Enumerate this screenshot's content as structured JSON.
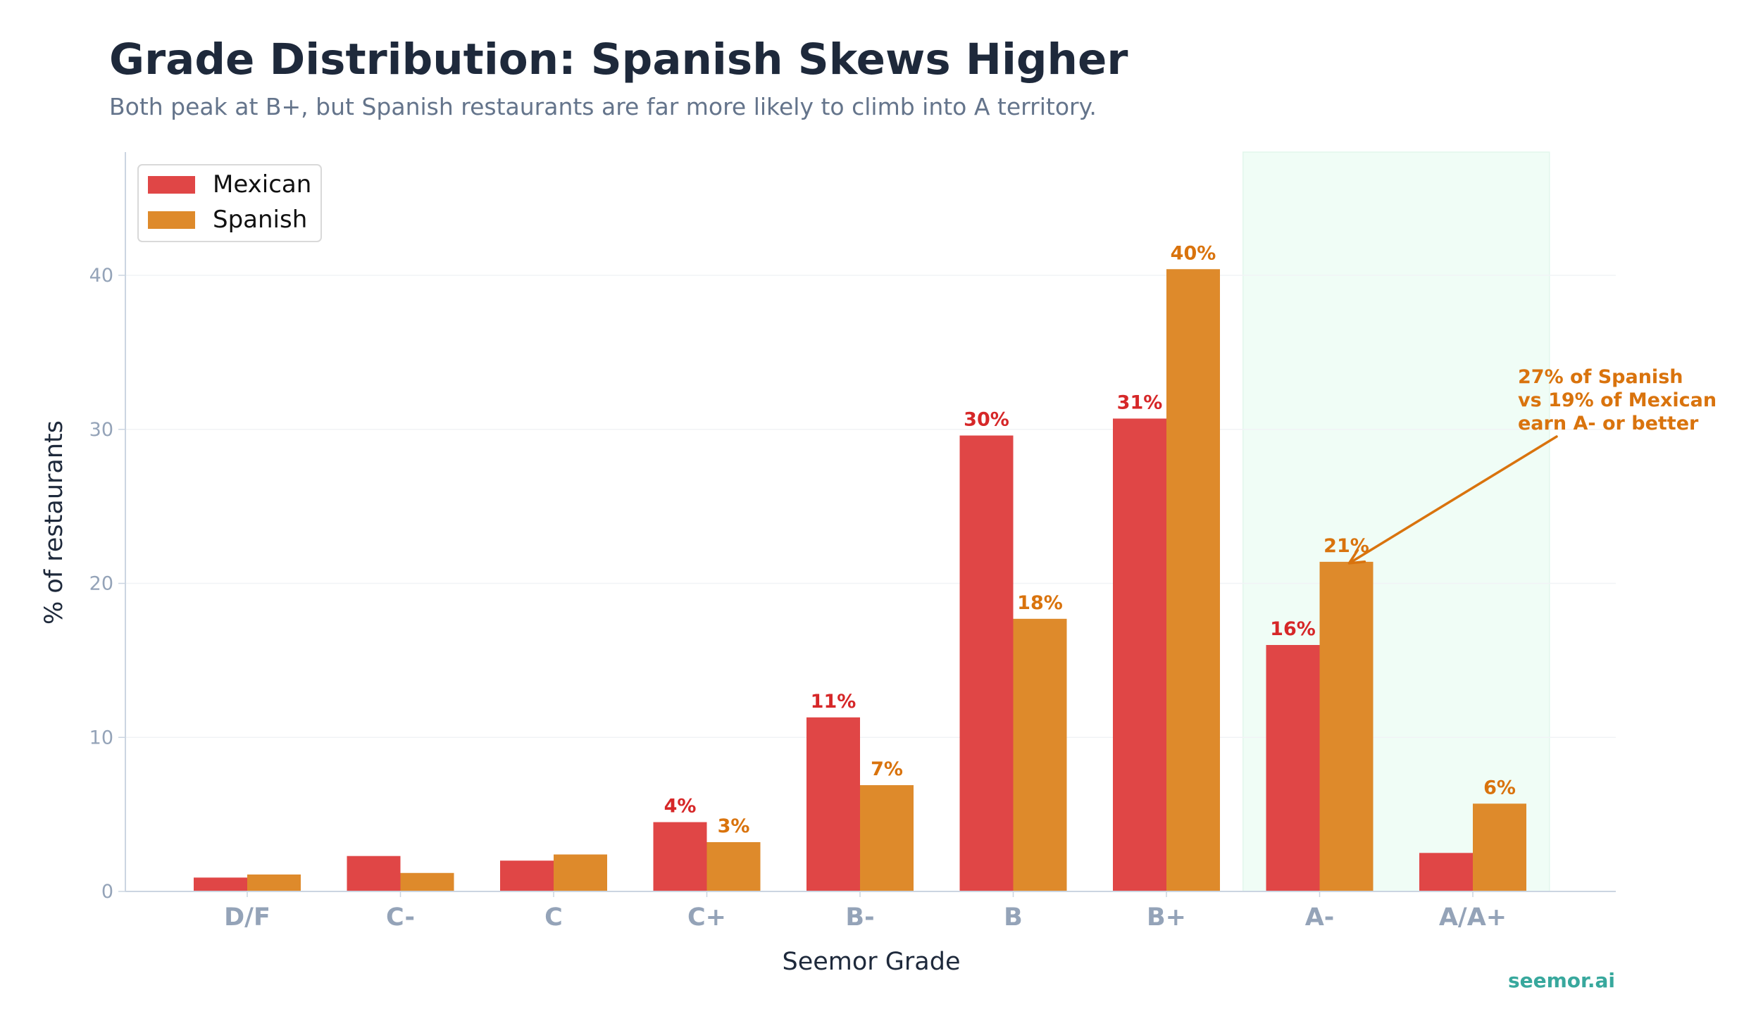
{
  "chart_data": {
    "type": "bar",
    "title": "Grade Distribution: Spanish Skews Higher",
    "subtitle": "Both peak at B+, but Spanish restaurants are far more likely to climb into A territory.",
    "xlabel": "Seemor Grade",
    "ylabel": "% of restaurants",
    "categories": [
      "D/F",
      "C-",
      "C",
      "C+",
      "B-",
      "B",
      "B+",
      "A-",
      "A/A+"
    ],
    "series": [
      {
        "name": "Mexican",
        "color": "#e04646",
        "label_color": "#d62728",
        "values": [
          0.9,
          2.3,
          2.0,
          4.5,
          11.3,
          29.6,
          30.7,
          16.0,
          2.5
        ],
        "labels": [
          "",
          "",
          "",
          "4%",
          "11%",
          "30%",
          "31%",
          "16%",
          ""
        ]
      },
      {
        "name": "Spanish",
        "color": "#de8a2b",
        "label_color": "#d9730d",
        "values": [
          1.1,
          1.2,
          2.4,
          3.2,
          6.9,
          17.7,
          40.4,
          21.4,
          5.7
        ],
        "labels": [
          "",
          "",
          "",
          "3%",
          "7%",
          "18%",
          "40%",
          "21%",
          "6%"
        ]
      }
    ],
    "ylim": [
      0,
      48
    ],
    "yticks": [
      0,
      10,
      20,
      30,
      40
    ],
    "grid": true,
    "legend_position": "top-left",
    "highlight_categories": [
      "A-",
      "A/A+"
    ],
    "annotation": {
      "lines": [
        "27% of Spanish",
        "vs 19% of Mexican",
        "earn A- or better"
      ],
      "color": "#d9730d",
      "target_category": "A-",
      "target_series": "Spanish"
    },
    "watermark": "seemor.ai"
  }
}
